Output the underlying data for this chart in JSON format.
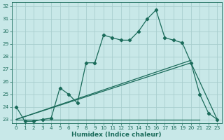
{
  "xlabel": "Humidex (Indice chaleur)",
  "bg_color": "#c8e8e8",
  "grid_color": "#a8cece",
  "line_color": "#1a6b5a",
  "xlim": [
    -0.5,
    23.5
  ],
  "ylim": [
    22.7,
    32.3
  ],
  "xticks": [
    0,
    1,
    2,
    3,
    4,
    5,
    6,
    7,
    8,
    9,
    10,
    11,
    12,
    13,
    14,
    15,
    16,
    17,
    18,
    19,
    20,
    21,
    22,
    23
  ],
  "yticks": [
    23,
    24,
    25,
    26,
    27,
    28,
    29,
    30,
    31,
    32
  ],
  "series1_x": [
    0,
    1,
    2,
    3,
    4,
    5,
    6,
    7,
    8,
    9,
    10,
    11,
    12,
    13,
    14,
    15,
    16,
    17,
    18,
    19,
    20,
    21,
    22,
    23
  ],
  "series1_y": [
    24.0,
    22.85,
    22.85,
    23.0,
    23.1,
    25.5,
    25.0,
    24.3,
    27.5,
    27.5,
    29.7,
    29.5,
    29.3,
    29.3,
    30.0,
    31.0,
    31.7,
    29.5,
    29.3,
    29.1,
    27.5,
    25.0,
    23.5,
    23.0
  ],
  "series2_x": [
    0,
    21
  ],
  "series2_y": [
    23.0,
    23.0
  ],
  "series3_x": [
    0,
    20,
    23
  ],
  "series3_y": [
    23.0,
    27.5,
    23.0
  ],
  "series4_x": [
    0,
    20
  ],
  "series4_y": [
    23.0,
    27.7
  ],
  "xlabel_fontsize": 6.5,
  "tick_fontsize": 5.2,
  "linewidth": 0.9,
  "markersize": 2.2
}
